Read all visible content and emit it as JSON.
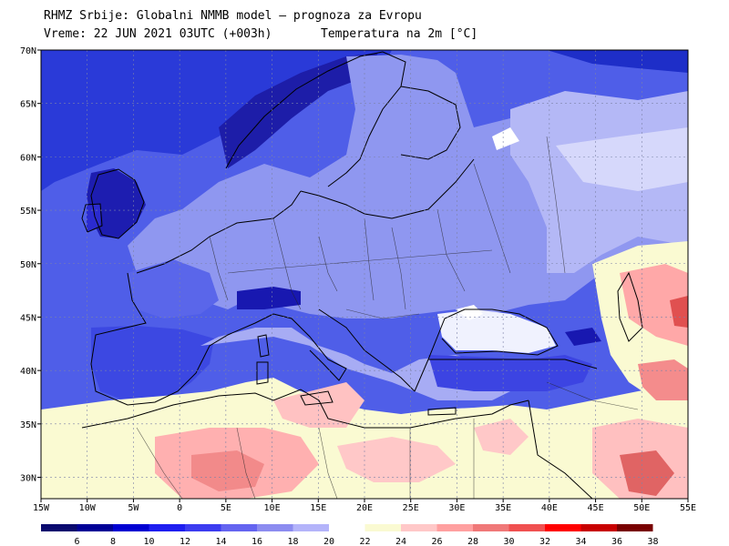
{
  "header": {
    "line1": "RHMZ Srbije: Globalni NMMB model — prognoza za Evropu",
    "line2": "Vreme: 22 JUN 2021 03UTC (+003h)",
    "line3": "Temperatura na 2m [°C]"
  },
  "map": {
    "lon_range": [
      -15,
      55
    ],
    "lat_range": [
      28,
      70
    ],
    "lat_labels": [
      "70N",
      "65N",
      "60N",
      "55N",
      "50N",
      "45N",
      "40N",
      "35N",
      "30N"
    ],
    "lon_labels": [
      "15W",
      "10W",
      "5W",
      "0",
      "5E",
      "10E",
      "15E",
      "20E",
      "25E",
      "30E",
      "35E",
      "40E",
      "45E",
      "50E",
      "55E"
    ],
    "grid": true,
    "colors": {
      "ocean_base": "#4f5ee8",
      "land_base": "#8f97f0",
      "coast": "#000000",
      "grid": "#9ea3c2"
    }
  },
  "colorbar": {
    "labels": [
      "6",
      "8",
      "10",
      "12",
      "14",
      "16",
      "18",
      "20",
      "22",
      "24",
      "26",
      "28",
      "30",
      "32",
      "34",
      "36",
      "38"
    ],
    "colors": [
      "#0a0a6e",
      "#000096",
      "#0000d2",
      "#1e1ef0",
      "#3c3cf0",
      "#6464f0",
      "#8c8cf0",
      "#b4b4fa",
      "#ffffff",
      "#fafad2",
      "#ffc8c8",
      "#ffa0a0",
      "#f07878",
      "#f05050",
      "#ff0000",
      "#c80000",
      "#780000"
    ]
  }
}
